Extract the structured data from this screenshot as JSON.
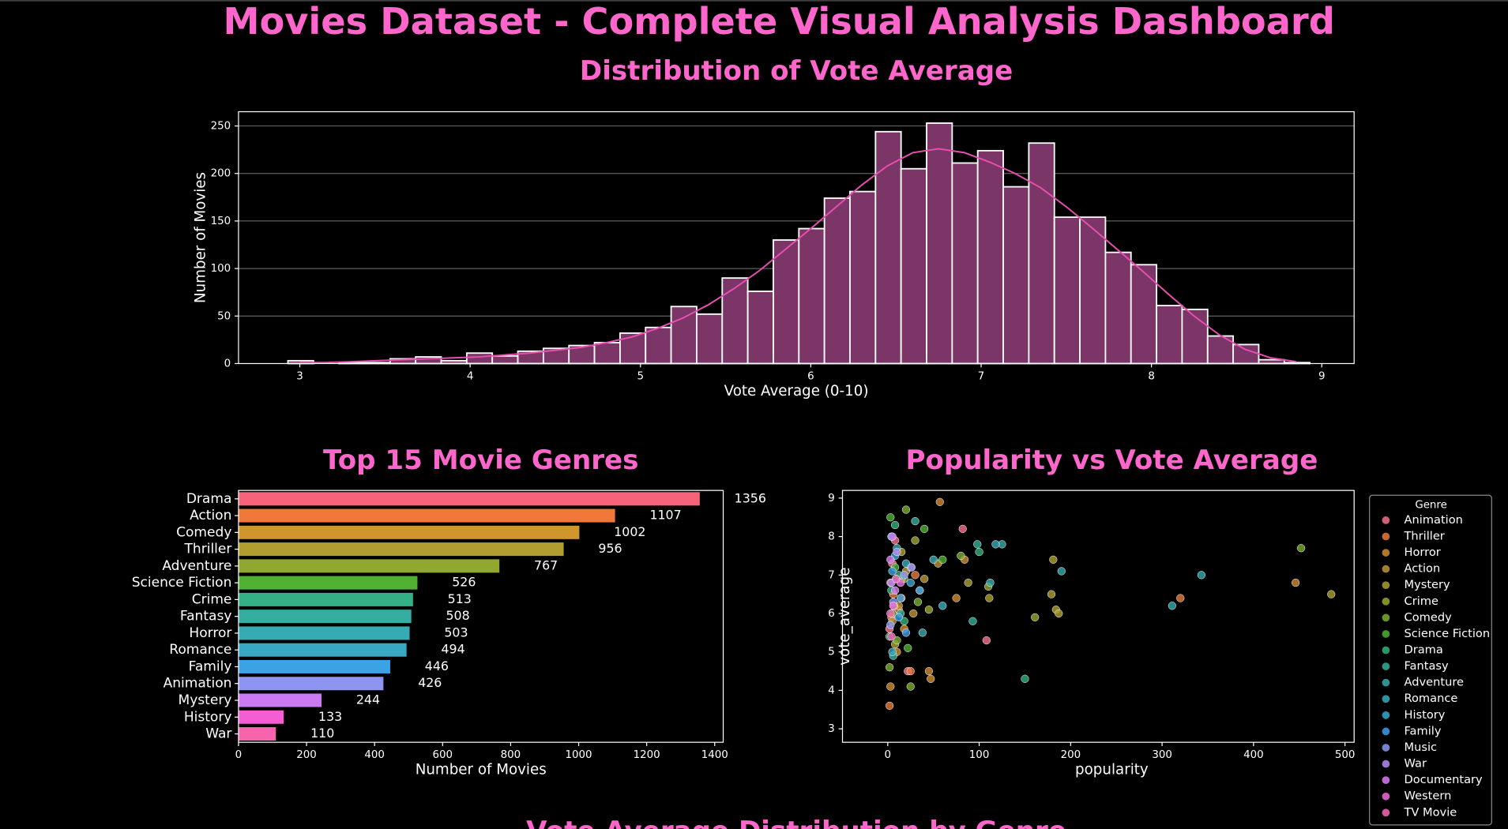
{
  "title": "Movies Dataset - Complete Visual Analysis Dashboard",
  "section_title": "Vote Average Distribution by Genre",
  "chart_data": [
    {
      "type": "histogram",
      "title": "Distribution of Vote Average",
      "xlabel": "Vote Average (0-10)",
      "ylabel": "Number of Movies",
      "color": "#7b3566",
      "edge_color": "#ffffff",
      "bins": [
        2.93,
        3.08,
        3.23,
        3.38,
        3.53,
        3.68,
        3.83,
        3.98,
        4.13,
        4.28,
        4.43,
        4.58,
        4.73,
        4.88,
        5.03,
        5.18,
        5.33,
        5.48,
        5.63,
        5.78,
        5.93,
        6.08,
        6.23,
        6.38,
        6.53,
        6.68,
        6.83,
        6.98,
        7.13,
        7.28,
        7.43,
        7.58,
        7.73,
        7.88,
        8.03,
        8.18,
        8.33,
        8.48,
        8.63,
        8.78,
        8.93
      ],
      "values": [
        3,
        0,
        1,
        1,
        5,
        7,
        3,
        11,
        8,
        13,
        16,
        19,
        22,
        32,
        38,
        60,
        52,
        90,
        76,
        130,
        142,
        174,
        181,
        244,
        205,
        253,
        211,
        224,
        186,
        232,
        154,
        154,
        117,
        104,
        61,
        57,
        29,
        20,
        4,
        1
      ],
      "kde": {
        "color": "#e84fb0",
        "x": [
          3.0,
          3.15,
          3.3,
          3.45,
          3.6,
          3.75,
          3.9,
          4.05,
          4.2,
          4.35,
          4.5,
          4.65,
          4.8,
          4.95,
          5.1,
          5.25,
          5.4,
          5.55,
          5.7,
          5.85,
          6.0,
          6.15,
          6.3,
          6.45,
          6.6,
          6.75,
          6.9,
          7.05,
          7.2,
          7.35,
          7.5,
          7.65,
          7.8,
          7.95,
          8.1,
          8.25,
          8.4,
          8.55,
          8.7,
          8.85
        ],
        "values": [
          1,
          1,
          2,
          3,
          4,
          5,
          6,
          7,
          9,
          11,
          14,
          17,
          22,
          28,
          37,
          48,
          62,
          79,
          98,
          120,
          142,
          165,
          188,
          208,
          222,
          226,
          222,
          212,
          200,
          185,
          165,
          143,
          120,
          97,
          73,
          50,
          30,
          15,
          6,
          2
        ]
      },
      "xlim": [
        2.64,
        9.19
      ],
      "xticks": [
        3,
        4,
        5,
        6,
        7,
        8,
        9
      ],
      "ylim": [
        0,
        265
      ],
      "yticks": [
        0,
        50,
        100,
        150,
        200,
        250
      ],
      "grid": true
    },
    {
      "type": "barh",
      "title": "Top 15 Movie Genres",
      "xlabel": "Number of Movies",
      "categories": [
        "Drama",
        "Action",
        "Comedy",
        "Thriller",
        "Adventure",
        "Science Fiction",
        "Crime",
        "Fantasy",
        "Horror",
        "Romance",
        "Family",
        "Animation",
        "Mystery",
        "History",
        "War"
      ],
      "values": [
        1356,
        1107,
        1002,
        956,
        767,
        526,
        513,
        508,
        503,
        494,
        446,
        426,
        244,
        133,
        110
      ],
      "colors": [
        "#f7647a",
        "#f2783a",
        "#d1952e",
        "#b19e2f",
        "#91a830",
        "#51b130",
        "#33b085",
        "#35ada0",
        "#37abb3",
        "#39a8c4",
        "#3ba2e6",
        "#8e94f2",
        "#cc79f4",
        "#f45dd4",
        "#f664ad"
      ],
      "xlim": [
        0,
        1425
      ],
      "xticks": [
        0,
        200,
        400,
        600,
        800,
        1000,
        1200,
        1400
      ]
    },
    {
      "type": "scatter",
      "title": "Popularity vs Vote Average",
      "xlabel": "popularity",
      "ylabel": "vote_average",
      "legend_title": "Genre",
      "legend": "outside-right",
      "xlim": [
        -49.5,
        510
      ],
      "xticks": [
        0,
        100,
        200,
        300,
        400,
        500
      ],
      "ylim": [
        2.65,
        9.2
      ],
      "yticks": [
        3,
        4,
        5,
        6,
        7,
        8,
        9
      ],
      "series": [
        {
          "name": "Animation",
          "color": "#f77189",
          "x": [
            3,
            8,
            82,
            108,
            15,
            5,
            22,
            2
          ],
          "values": [
            6.8,
            7.9,
            8.2,
            5.3,
            6.4,
            7.3,
            4.5,
            5.6
          ]
        },
        {
          "name": "Thriller",
          "color": "#ea7a3a",
          "x": [
            320,
            25,
            4,
            12,
            30,
            6,
            2
          ],
          "values": [
            6.4,
            4.5,
            5.9,
            6.1,
            7.0,
            6.5,
            3.6
          ]
        },
        {
          "name": "Horror",
          "color": "#d18b32",
          "x": [
            446,
            57,
            84,
            75,
            45,
            47,
            10,
            3,
            18
          ],
          "values": [
            6.8,
            8.9,
            7.4,
            6.4,
            4.5,
            4.3,
            5.0,
            4.1,
            5.6
          ]
        },
        {
          "name": "Action",
          "color": "#bd9532",
          "x": [
            35,
            20,
            40,
            55,
            12,
            5,
            28
          ],
          "values": [
            6.6,
            7.1,
            6.9,
            7.3,
            6.2,
            5.8,
            6.0
          ]
        },
        {
          "name": "Mystery",
          "color": "#aca031",
          "x": [
            485,
            181,
            184,
            187,
            179,
            111,
            88,
            15,
            8
          ],
          "values": [
            6.5,
            7.4,
            6.1,
            6.0,
            6.5,
            6.4,
            6.8,
            7.6,
            5.2
          ]
        },
        {
          "name": "Crime",
          "color": "#9aa631",
          "x": [
            161,
            110,
            30,
            18,
            7,
            45
          ],
          "values": [
            5.9,
            6.7,
            7.9,
            6.9,
            6.2,
            6.1
          ]
        },
        {
          "name": "Comedy",
          "color": "#7bad31",
          "x": [
            452,
            80,
            20,
            5,
            10,
            2,
            33,
            25
          ],
          "values": [
            7.7,
            7.5,
            8.7,
            6.0,
            5.3,
            4.6,
            6.3,
            4.1
          ]
        },
        {
          "name": "Science Fiction",
          "color": "#4cb232",
          "x": [
            60,
            40,
            15,
            8,
            22,
            3
          ],
          "values": [
            7.4,
            8.2,
            6.9,
            7.2,
            5.1,
            8.5
          ]
        },
        {
          "name": "Drama",
          "color": "#33b07a",
          "x": [
            150,
            100,
            12,
            4,
            8,
            2,
            25,
            18
          ],
          "values": [
            4.3,
            7.6,
            7.0,
            6.6,
            8.3,
            5.4,
            7.2,
            5.8
          ]
        },
        {
          "name": "Fantasy",
          "color": "#35ae98",
          "x": [
            98,
            93,
            30,
            14,
            6
          ],
          "values": [
            7.8,
            5.8,
            8.4,
            6.0,
            4.9
          ]
        },
        {
          "name": "Adventure",
          "color": "#36acab",
          "x": [
            343,
            311,
            190,
            125,
            112,
            50,
            38,
            10
          ],
          "values": [
            7.0,
            6.2,
            7.1,
            7.8,
            6.8,
            7.4,
            5.5,
            7.7
          ]
        },
        {
          "name": "Romance",
          "color": "#37a9bd",
          "x": [
            118,
            60,
            20,
            5,
            9
          ],
          "values": [
            7.8,
            6.2,
            7.3,
            5.0,
            6.9
          ]
        },
        {
          "name": "History",
          "color": "#39a5d0",
          "x": [
            8,
            25,
            4,
            14
          ],
          "values": [
            7.5,
            6.8,
            8.0,
            6.4
          ]
        },
        {
          "name": "Family",
          "color": "#3c9fe9",
          "x": [
            35,
            12,
            5,
            20
          ],
          "values": [
            6.6,
            5.9,
            7.1,
            5.5
          ]
        },
        {
          "name": "Music",
          "color": "#8b98f4",
          "x": [
            6,
            18,
            3
          ],
          "values": [
            6.3,
            7.0,
            5.7
          ]
        },
        {
          "name": "War",
          "color": "#b48bf4",
          "x": [
            10,
            26,
            4
          ],
          "values": [
            7.6,
            7.2,
            6.8
          ]
        },
        {
          "name": "Documentary",
          "color": "#d87df4",
          "x": [
            3,
            8,
            5
          ],
          "values": [
            7.4,
            6.6,
            8.0
          ]
        },
        {
          "name": "Western",
          "color": "#f36ae1",
          "x": [
            14,
            6
          ],
          "values": [
            6.8,
            6.2
          ]
        },
        {
          "name": "TV Movie",
          "color": "#f567b6",
          "x": [
            3,
            9,
            4
          ],
          "values": [
            6.0,
            6.9,
            5.4
          ]
        }
      ]
    }
  ]
}
